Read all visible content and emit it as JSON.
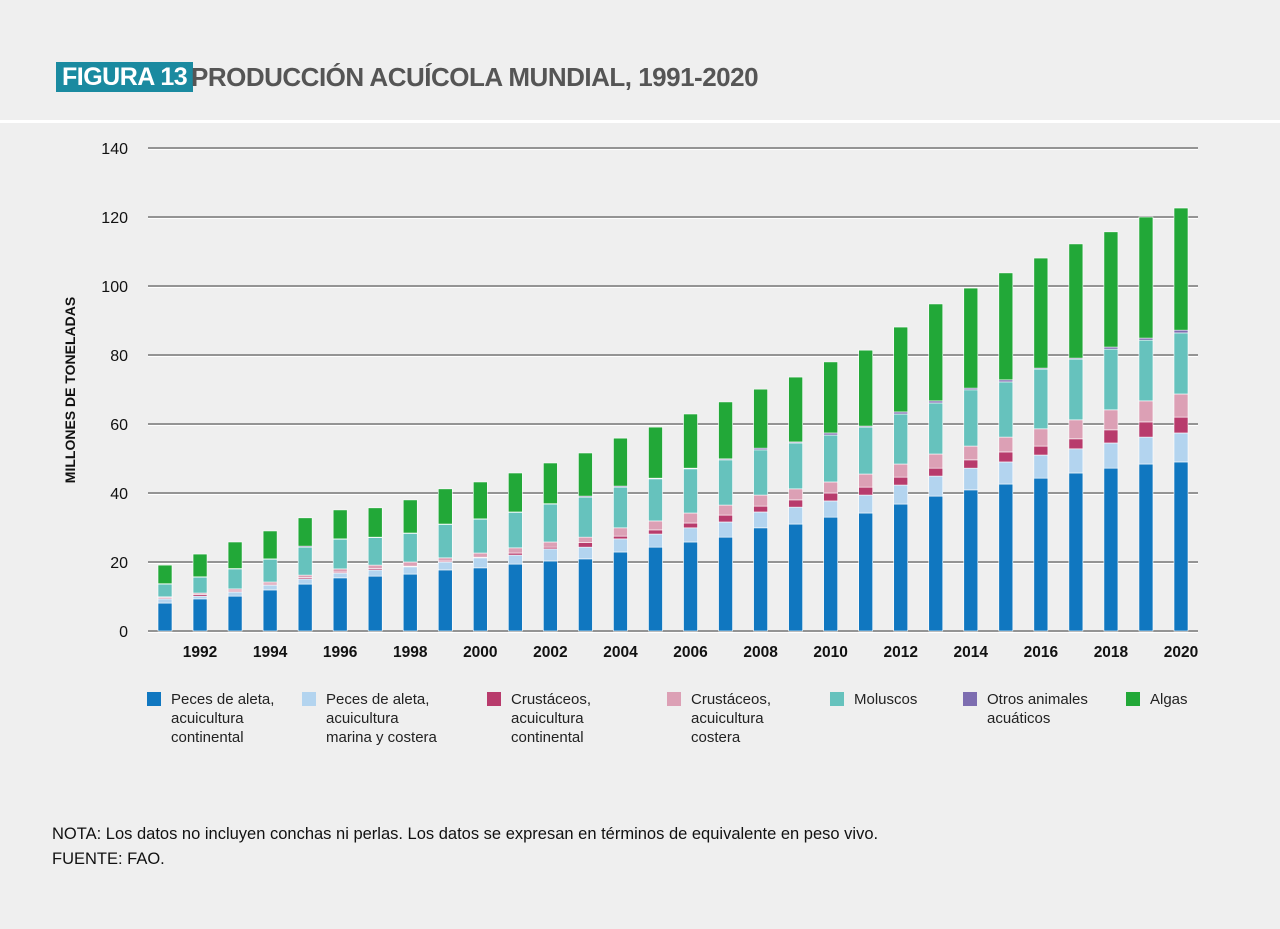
{
  "header": {
    "badge": "FIGURA 13",
    "title": "PRODUCCIÓN ACUÍCOLA MUNDIAL, 1991-2020"
  },
  "notes": {
    "nota": "NOTA: Los datos no incluyen conchas ni perlas. Los datos se expresan en términos de equivalente en peso vivo.",
    "fuente": "FUENTE: FAO."
  },
  "chart_data": {
    "type": "bar",
    "stacked": true,
    "title": "PRODUCCIÓN ACUÍCOLA MUNDIAL, 1991-2020",
    "xlabel": "",
    "ylabel": "MILLONES DE TONELADAS",
    "ylim": [
      0,
      140
    ],
    "yticks": [
      "0",
      "20",
      "40",
      "60",
      "80",
      "100",
      "120",
      "140"
    ],
    "grid": true,
    "legend_position": "bottom",
    "categories": [
      1991,
      1992,
      1993,
      1994,
      1995,
      1996,
      1997,
      1998,
      1999,
      2000,
      2001,
      2002,
      2003,
      2004,
      2005,
      2006,
      2007,
      2008,
      2009,
      2010,
      2011,
      2012,
      2013,
      2014,
      2015,
      2016,
      2017,
      2018,
      2019,
      2020
    ],
    "xtick_labels": [
      "1992",
      "1994",
      "1996",
      "1998",
      "2000",
      "2002",
      "2004",
      "2006",
      "2008",
      "2010",
      "2012",
      "2014",
      "2016",
      "2018",
      "2020"
    ],
    "series": [
      {
        "name": "Peces de aleta, acuicultura continental",
        "lines": [
          "Peces de aleta,",
          "acuicultura",
          "continental"
        ],
        "color": "#1077c0",
        "values": [
          8.1,
          9.3,
          10.1,
          11.9,
          13.6,
          15.4,
          15.9,
          16.5,
          17.7,
          18.3,
          19.4,
          20.3,
          20.9,
          22.9,
          24.3,
          25.8,
          27.2,
          29.9,
          31.0,
          33.0,
          34.2,
          36.8,
          39.1,
          40.9,
          42.6,
          44.3,
          45.8,
          47.2,
          48.4,
          49.0
        ]
      },
      {
        "name": "Peces de aleta, acuicultura marina y costera",
        "lines": [
          "Peces de aleta,",
          "acuicultura",
          "marina y costera"
        ],
        "color": "#b3d4ef",
        "values": [
          1.2,
          0.8,
          1.2,
          1.4,
          1.5,
          1.4,
          1.8,
          2.1,
          2.3,
          2.9,
          2.6,
          3.5,
          3.4,
          3.8,
          3.8,
          4.1,
          4.4,
          4.6,
          4.9,
          4.7,
          5.2,
          5.5,
          5.8,
          6.3,
          6.4,
          6.7,
          7.0,
          7.3,
          7.8,
          8.4
        ]
      },
      {
        "name": "Crustáceos, acuicultura continental",
        "lines": [
          "Crustáceos,",
          "acuicultura",
          "continental"
        ],
        "color": "#b83b6c",
        "values": [
          0.3,
          0.5,
          0.3,
          0.3,
          0.4,
          0.3,
          0.4,
          0.2,
          0.3,
          0.2,
          0.6,
          0.5,
          1.3,
          0.8,
          1.2,
          1.4,
          2.0,
          1.7,
          2.1,
          2.3,
          2.3,
          2.3,
          2.3,
          2.4,
          2.9,
          2.6,
          2.9,
          3.8,
          4.4,
          4.6
        ]
      },
      {
        "name": "Crustáceos, acuicultura costera",
        "lines": [
          "Crustáceos,",
          "acuicultura",
          "costera"
        ],
        "color": "#dca0b5",
        "values": [
          0.3,
          0.4,
          0.6,
          0.6,
          0.7,
          0.9,
          1.0,
          1.2,
          0.9,
          1.2,
          1.5,
          1.5,
          1.6,
          2.4,
          2.6,
          2.9,
          2.9,
          3.2,
          3.2,
          3.2,
          3.8,
          3.8,
          4.1,
          4.0,
          4.3,
          5.0,
          5.5,
          5.8,
          6.1,
          6.7
        ]
      },
      {
        "name": "Moluscos",
        "lines": [
          "Moluscos"
        ],
        "color": "#66c2bd",
        "values": [
          3.7,
          4.6,
          5.8,
          6.6,
          8.1,
          8.6,
          8.0,
          8.3,
          9.7,
          9.8,
          10.3,
          11.0,
          11.6,
          11.8,
          12.2,
          12.8,
          13.1,
          13.1,
          13.3,
          13.6,
          13.6,
          14.5,
          14.8,
          16.3,
          16.0,
          17.3,
          17.6,
          17.6,
          17.6,
          17.7
        ]
      },
      {
        "name": "Otros animales acuáticos",
        "lines": [
          "Otros animales",
          "acuáticos"
        ],
        "color": "#7d6db0",
        "values": [
          0.1,
          0.1,
          0.1,
          0.1,
          0.3,
          0.1,
          0.1,
          0.1,
          0.1,
          0.1,
          0.1,
          0.1,
          0.3,
          0.3,
          0.2,
          0.2,
          0.3,
          0.5,
          0.3,
          0.6,
          0.3,
          0.6,
          0.6,
          0.5,
          0.6,
          0.3,
          0.3,
          0.6,
          0.6,
          0.8
        ]
      },
      {
        "name": "Algas",
        "lines": [
          "Algas"
        ],
        "color": "#22a838",
        "values": [
          5.4,
          6.6,
          7.7,
          8.1,
          8.2,
          8.4,
          8.5,
          9.6,
          10.2,
          10.7,
          11.3,
          11.8,
          12.5,
          13.9,
          14.8,
          15.7,
          16.5,
          17.1,
          18.8,
          20.6,
          22.0,
          24.6,
          28.1,
          29.0,
          31.0,
          31.9,
          33.1,
          33.4,
          35.1,
          35.4
        ]
      }
    ]
  }
}
